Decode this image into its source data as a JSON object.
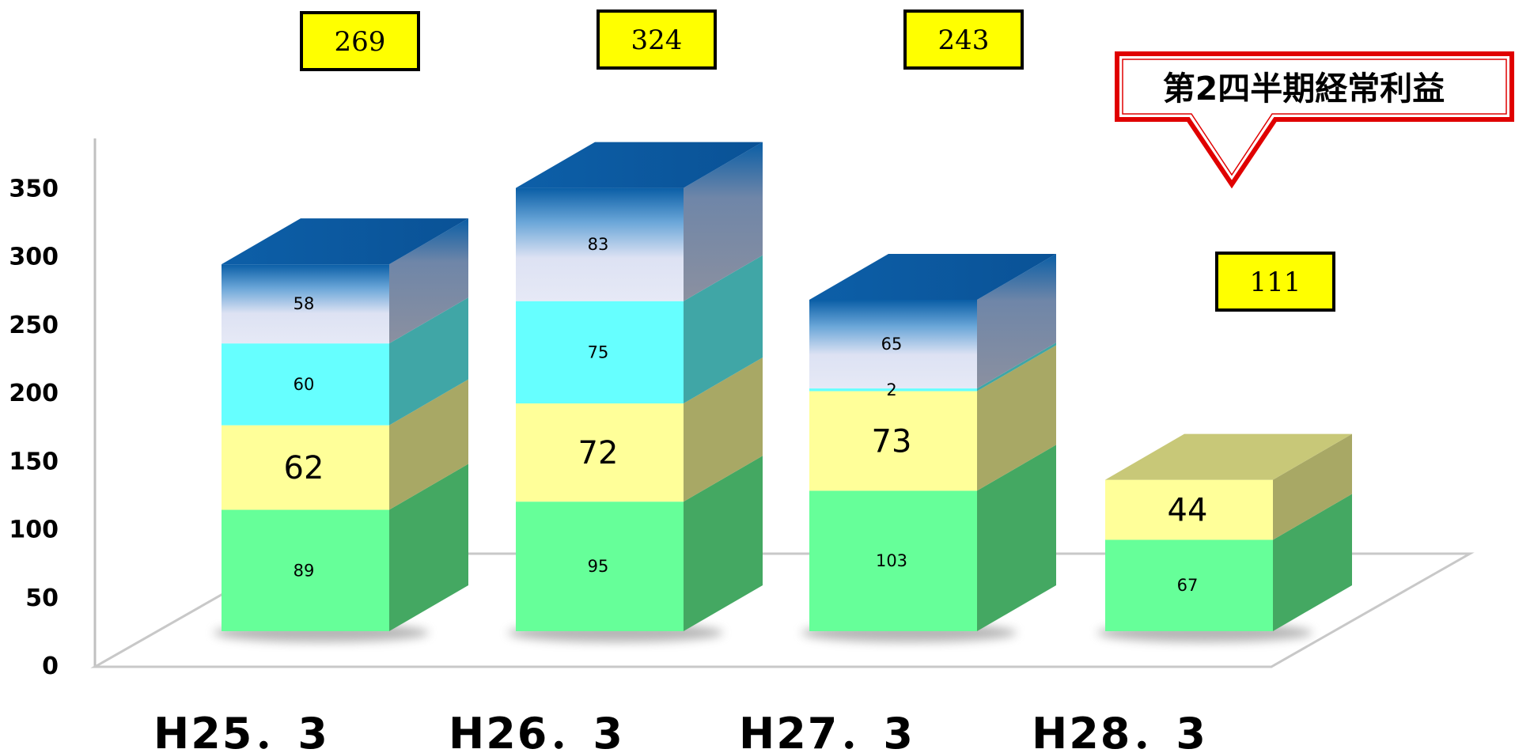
{
  "chart_data": {
    "type": "bar",
    "stacked": true,
    "three_d": true,
    "categories": [
      "H25．3",
      "H26．3",
      "H27．3",
      "H28．3"
    ],
    "ylim": [
      0,
      350
    ],
    "yticks": [
      "0",
      "50",
      "100",
      "150",
      "200",
      "250",
      "300",
      "350"
    ],
    "series": [
      {
        "values": [
          89,
          95,
          103,
          67
        ],
        "labels": [
          "89",
          "95",
          "103",
          "67"
        ],
        "color": "#66ff99",
        "side_color": "#44a862",
        "top_color": "#5bd48a",
        "label_size": "small"
      },
      {
        "values": [
          62,
          72,
          73,
          44
        ],
        "labels": [
          "62",
          "72",
          "73",
          "44"
        ],
        "color": "#ffff99",
        "side_color": "#a8a865",
        "top_color": "#c8c878",
        "label_size": "large"
      },
      {
        "values": [
          60,
          75,
          2,
          null
        ],
        "labels": [
          "60",
          "75",
          "2",
          ""
        ],
        "color": "#66ffff",
        "side_color": "#40a6a6",
        "top_color": "#55cccc",
        "label_size": "small"
      },
      {
        "values": [
          58,
          83,
          65,
          null
        ],
        "labels": [
          "58",
          "83",
          "65",
          ""
        ],
        "color": "#dde2f3",
        "side_color": "#8690a6",
        "top_color": "#0a5ea6",
        "label_size": "small"
      }
    ],
    "totals": [
      "269",
      "324",
      "243",
      "111"
    ],
    "annotation": "第2四半期経常利益",
    "colors": {
      "total_box": "#ffff00",
      "callout_border": "#e00000",
      "axis": "#c0c0c0"
    }
  }
}
